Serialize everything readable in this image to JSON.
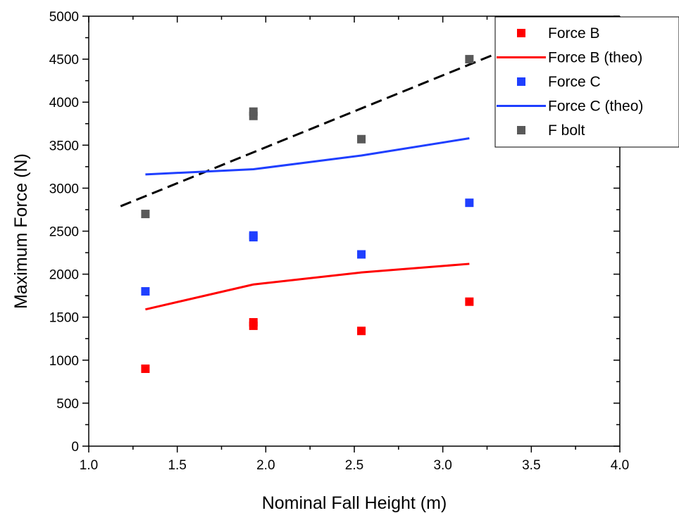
{
  "chart_data": {
    "type": "scatter",
    "xlabel": "Nominal Fall Height (m)",
    "ylabel": "Maximum Force (N)",
    "xlim": [
      1.0,
      4.0
    ],
    "ylim": [
      0,
      5000
    ],
    "x_ticks": [
      1.0,
      1.5,
      2.0,
      2.5,
      3.0,
      3.5,
      4.0
    ],
    "x_tick_labels": [
      "1.0",
      "1.5",
      "2.0",
      "2.5",
      "3.0",
      "3.5",
      "4.0"
    ],
    "y_ticks": [
      0,
      500,
      1000,
      1500,
      2000,
      2500,
      3000,
      3500,
      4000,
      4500,
      5000
    ],
    "y_tick_labels": [
      "0",
      "500",
      "1000",
      "1500",
      "2000",
      "2500",
      "3000",
      "3500",
      "4000",
      "4500",
      "5000"
    ],
    "grid": false,
    "legend_position": "top-right",
    "series": [
      {
        "name": "Force B",
        "kind": "marker",
        "color": "#ff0000",
        "points": [
          [
            1.32,
            900
          ],
          [
            1.93,
            1400
          ],
          [
            1.93,
            1440
          ],
          [
            2.54,
            1340
          ],
          [
            3.15,
            1680
          ]
        ]
      },
      {
        "name": "Force B (theo)",
        "kind": "line",
        "color": "#ff0000",
        "points": [
          [
            1.32,
            1590
          ],
          [
            1.93,
            1880
          ],
          [
            2.54,
            2020
          ],
          [
            3.15,
            2120
          ]
        ]
      },
      {
        "name": "Force C",
        "kind": "marker",
        "color": "#1f3fff",
        "points": [
          [
            1.32,
            1800
          ],
          [
            1.93,
            2430
          ],
          [
            1.93,
            2450
          ],
          [
            2.54,
            2230
          ],
          [
            3.15,
            2830
          ]
        ]
      },
      {
        "name": "Force C (theo)",
        "kind": "line",
        "color": "#1f3fff",
        "points": [
          [
            1.32,
            3160
          ],
          [
            1.93,
            3220
          ],
          [
            2.54,
            3380
          ],
          [
            3.15,
            3580
          ]
        ]
      },
      {
        "name": "F bolt",
        "kind": "marker",
        "color": "#595959",
        "points": [
          [
            1.32,
            2700
          ],
          [
            1.93,
            3840
          ],
          [
            1.93,
            3890
          ],
          [
            2.54,
            3570
          ],
          [
            3.15,
            4500
          ]
        ]
      }
    ],
    "trendline": {
      "color": "#000000",
      "style": "dashed",
      "points": [
        [
          1.18,
          2790
        ],
        [
          3.5,
          4730
        ]
      ]
    }
  }
}
